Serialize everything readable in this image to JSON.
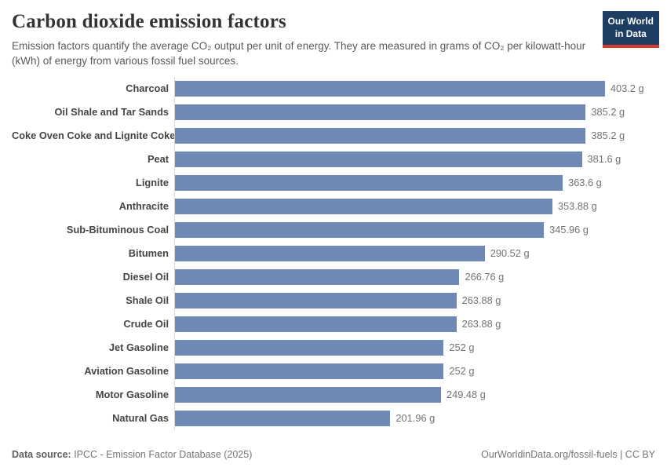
{
  "header": {
    "title": "Carbon dioxide emission factors",
    "subtitle": "Emission factors quantify the average CO₂ output per unit of energy. They are measured in grams of CO₂ per kilowatt-hour (kWh) of energy from various fossil fuel sources.",
    "logo": {
      "line1": "Our World",
      "line2": "in Data"
    }
  },
  "chart_data": {
    "type": "bar",
    "orientation": "horizontal",
    "title": "Carbon dioxide emission factors",
    "unit": "grams of CO2 per kWh",
    "xlim": [
      0,
      403.2
    ],
    "grid": false,
    "legend": "none",
    "bar_color": "#6d89b4",
    "categories": [
      "Charcoal",
      "Oil Shale and Tar Sands",
      "Coke Oven Coke and Lignite Coke",
      "Peat",
      "Lignite",
      "Anthracite",
      "Sub-Bituminous Coal",
      "Bitumen",
      "Diesel Oil",
      "Shale Oil",
      "Crude Oil",
      "Jet Gasoline",
      "Aviation Gasoline",
      "Motor Gasoline",
      "Natural Gas"
    ],
    "values": [
      403.2,
      385.2,
      385.2,
      381.6,
      363.6,
      353.88,
      345.96,
      290.52,
      266.76,
      263.88,
      263.88,
      252,
      252,
      249.48,
      201.96
    ],
    "value_labels": [
      "403.2 g",
      "385.2 g",
      "385.2 g",
      "381.6 g",
      "363.6 g",
      "353.88 g",
      "345.96 g",
      "290.52 g",
      "266.76 g",
      "263.88 g",
      "263.88 g",
      "252 g",
      "252 g",
      "249.48 g",
      "201.96 g"
    ]
  },
  "footer": {
    "source_label": "Data source:",
    "source_text": " IPCC - Emission Factor Database (2025)",
    "link_text": "OurWorldinData.org/fossil-fuels | CC BY"
  },
  "colors": {
    "bar": "#6d89b4",
    "logo_bg": "#1d3d63",
    "logo_accent": "#d73a33",
    "axis_line": "#d9d9d9"
  }
}
